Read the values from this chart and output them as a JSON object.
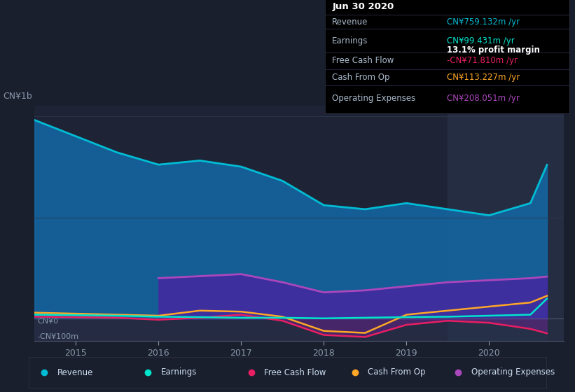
{
  "bg_color": "#1a1f2e",
  "plot_bg_color": "#1e2435",
  "highlight_bg": "#252d42",
  "title_label": "CN¥1b",
  "ylabel_top": "CN¥1b",
  "ylabel_zero": "CN¥0",
  "ylabel_bottom": "-CN¥100m",
  "xlabel_ticks": [
    2015,
    2016,
    2017,
    2018,
    2019,
    2020
  ],
  "x": [
    2014.5,
    2015.0,
    2015.5,
    2016.0,
    2016.5,
    2017.0,
    2017.5,
    2018.0,
    2018.5,
    2019.0,
    2019.5,
    2020.0,
    2020.5,
    2020.7
  ],
  "revenue": [
    980,
    900,
    820,
    760,
    780,
    750,
    680,
    560,
    540,
    570,
    540,
    510,
    570,
    759
  ],
  "earnings": [
    20,
    18,
    15,
    10,
    8,
    5,
    5,
    2,
    5,
    8,
    10,
    15,
    20,
    99
  ],
  "free_cash_flow": [
    10,
    8,
    5,
    -5,
    5,
    20,
    -10,
    -80,
    -90,
    -30,
    -10,
    -20,
    -50,
    -72
  ],
  "cash_from_op": [
    30,
    25,
    20,
    15,
    40,
    35,
    10,
    -60,
    -70,
    20,
    40,
    60,
    80,
    113
  ],
  "operating_expenses": [
    0,
    0,
    0,
    200,
    210,
    220,
    180,
    130,
    140,
    160,
    180,
    190,
    200,
    208
  ],
  "colors": {
    "revenue": "#00bcd4",
    "revenue_fill": "#1565a0",
    "earnings": "#00e5cc",
    "free_cash_flow": "#e91e63",
    "cash_from_op": "#ffa726",
    "operating_expenses": "#ab47bc",
    "operating_expenses_fill": "#4527a0"
  },
  "legend_items": [
    "Revenue",
    "Earnings",
    "Free Cash Flow",
    "Cash From Op",
    "Operating Expenses"
  ],
  "info_box": {
    "date": "Jun 30 2020",
    "revenue_label": "Revenue",
    "revenue_value": "CN¥759.132m /yr",
    "earnings_label": "Earnings",
    "earnings_value": "CN¥99.431m /yr",
    "profit_margin": "13.1% profit margin",
    "fcf_label": "Free Cash Flow",
    "fcf_value": "-CN¥71.810m /yr",
    "cashop_label": "Cash From Op",
    "cashop_value": "CN¥113.227m /yr",
    "opex_label": "Operating Expenses",
    "opex_value": "CN¥208.051m /yr"
  }
}
